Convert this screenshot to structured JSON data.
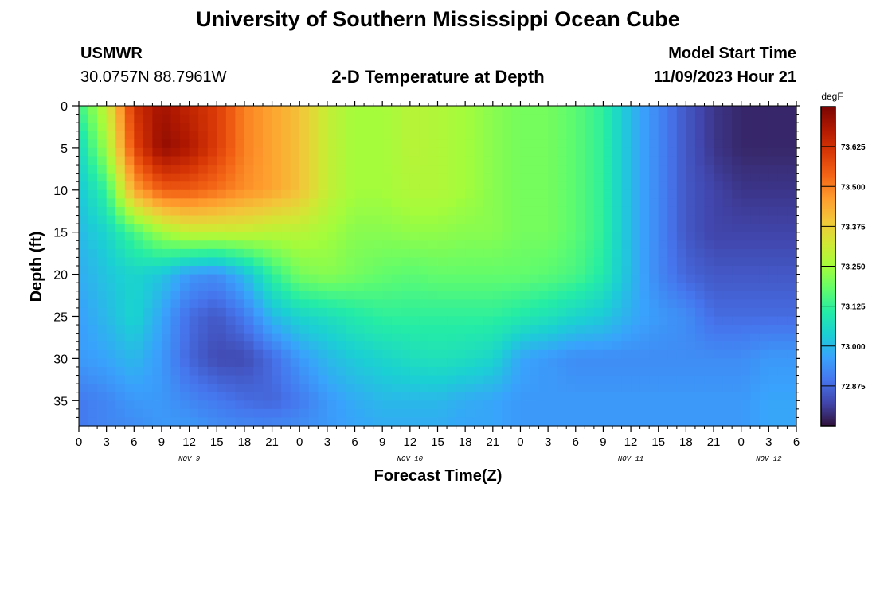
{
  "header": {
    "title": "University of Southern Mississippi Ocean Cube",
    "station": "USMWR",
    "coordinates": "30.0757N  88.7961W",
    "subtitle": "2-D Temperature at Depth",
    "model_start_label": "Model Start Time",
    "model_start_value": "11/09/2023 Hour 21"
  },
  "footer": {
    "title": "University of Southern Mississippi Ocean Cube"
  },
  "chart_data": {
    "type": "heatmap",
    "title": "2-D Temperature at Depth",
    "xlabel": "Forecast Time(Z)",
    "ylabel": "Depth (ft)",
    "x_tick_labels": [
      "0",
      "3",
      "6",
      "9",
      "12",
      "15",
      "18",
      "21",
      "0",
      "3",
      "6",
      "9",
      "12",
      "15",
      "18",
      "21",
      "0",
      "3",
      "6",
      "9",
      "12",
      "15",
      "18",
      "21",
      "0",
      "3",
      "6"
    ],
    "x_day_labels": [
      {
        "label": "NOV 9",
        "at_tick": 4
      },
      {
        "label": "NOV 10",
        "at_tick": 12
      },
      {
        "label": "NOV 11",
        "at_tick": 20
      },
      {
        "label": "NOV 12",
        "at_tick": 25
      }
    ],
    "x_range_hours": [
      0,
      78
    ],
    "y_ticks": [
      0,
      5,
      10,
      15,
      20,
      25,
      30,
      35
    ],
    "y_range_ft": [
      0,
      38
    ],
    "y_inverted": true,
    "colorbar": {
      "unit": "degF",
      "range": [
        72.75,
        73.75
      ],
      "ticks": [
        "73.625",
        "73.500",
        "73.375",
        "73.250",
        "73.125",
        "73.000",
        "72.875"
      ],
      "tick_values": [
        73.625,
        73.5,
        73.375,
        73.25,
        73.125,
        73.0,
        72.875
      ],
      "colormap": [
        "#30123b",
        "#4145ab",
        "#4675ed",
        "#39a2fc",
        "#1bcfd4",
        "#24eca6",
        "#61fc6c",
        "#a4fc3b",
        "#d1e834",
        "#f3c63a",
        "#fe9b2d",
        "#f36315",
        "#d93806",
        "#b11901",
        "#7a0403"
      ]
    },
    "depth_levels_ft": [
      0,
      5,
      10,
      15,
      20,
      25,
      30,
      35,
      38
    ],
    "time_hours": [
      0,
      3,
      6,
      9,
      12,
      15,
      18,
      21,
      24,
      27,
      30,
      33,
      36,
      39,
      42,
      45,
      48,
      51,
      54,
      57,
      60,
      63,
      66,
      69,
      72,
      75,
      78
    ],
    "temperature_degF": [
      [
        73.13,
        73.3,
        73.62,
        73.7,
        73.65,
        73.6,
        73.5,
        73.45,
        73.4,
        73.3,
        73.25,
        73.25,
        73.28,
        73.27,
        73.25,
        73.22,
        73.2,
        73.2,
        73.17,
        73.12,
        73.0,
        72.92,
        72.85,
        72.8,
        72.78,
        72.78,
        72.78
      ],
      [
        73.05,
        73.25,
        73.58,
        73.72,
        73.68,
        73.6,
        73.5,
        73.45,
        73.4,
        73.3,
        73.25,
        73.25,
        73.28,
        73.27,
        73.25,
        73.22,
        73.2,
        73.2,
        73.17,
        73.12,
        73.0,
        72.92,
        72.85,
        72.8,
        72.78,
        72.78,
        72.78
      ],
      [
        73.02,
        73.13,
        73.45,
        73.55,
        73.55,
        73.52,
        73.48,
        73.45,
        73.4,
        73.3,
        73.25,
        73.25,
        73.27,
        73.27,
        73.25,
        73.22,
        73.2,
        73.2,
        73.17,
        73.12,
        73.0,
        72.92,
        72.85,
        72.82,
        72.8,
        72.8,
        72.8
      ],
      [
        73.0,
        73.05,
        73.15,
        73.25,
        73.3,
        73.3,
        73.3,
        73.28,
        73.28,
        73.25,
        73.22,
        73.22,
        73.23,
        73.23,
        73.22,
        73.22,
        73.2,
        73.2,
        73.17,
        73.12,
        73.0,
        72.92,
        72.85,
        72.82,
        72.82,
        72.82,
        72.82
      ],
      [
        72.98,
        73.02,
        73.05,
        73.02,
        72.95,
        72.93,
        73.0,
        73.12,
        73.2,
        73.22,
        73.2,
        73.18,
        73.17,
        73.18,
        73.18,
        73.18,
        73.18,
        73.17,
        73.15,
        73.1,
        73.0,
        72.92,
        72.87,
        72.85,
        72.85,
        72.85,
        72.85
      ],
      [
        72.96,
        73.0,
        73.05,
        72.97,
        72.88,
        72.85,
        72.9,
        73.0,
        73.05,
        73.07,
        73.1,
        73.12,
        73.12,
        73.12,
        73.12,
        73.12,
        73.1,
        73.08,
        73.05,
        73.03,
        72.98,
        72.95,
        72.93,
        72.88,
        72.88,
        72.88,
        72.88
      ],
      [
        72.95,
        72.97,
        73.0,
        72.95,
        72.87,
        72.83,
        72.83,
        72.88,
        72.95,
        73.0,
        73.03,
        73.05,
        73.07,
        73.08,
        73.07,
        73.05,
        72.97,
        72.95,
        72.93,
        72.93,
        72.93,
        72.93,
        72.93,
        72.93,
        72.93,
        72.95,
        72.95
      ],
      [
        72.9,
        72.92,
        72.95,
        72.95,
        72.92,
        72.9,
        72.88,
        72.87,
        72.9,
        72.95,
        72.98,
        73.0,
        73.0,
        73.0,
        72.98,
        72.97,
        72.95,
        72.95,
        72.95,
        72.95,
        72.95,
        72.95,
        72.95,
        72.95,
        72.95,
        72.97,
        72.97
      ],
      [
        72.9,
        72.92,
        72.93,
        72.95,
        72.95,
        72.93,
        72.92,
        72.92,
        72.93,
        72.95,
        72.97,
        72.98,
        72.98,
        72.98,
        72.97,
        72.97,
        72.95,
        72.95,
        72.95,
        72.95,
        72.95,
        72.95,
        72.95,
        72.95,
        72.95,
        72.97,
        72.97
      ]
    ]
  }
}
